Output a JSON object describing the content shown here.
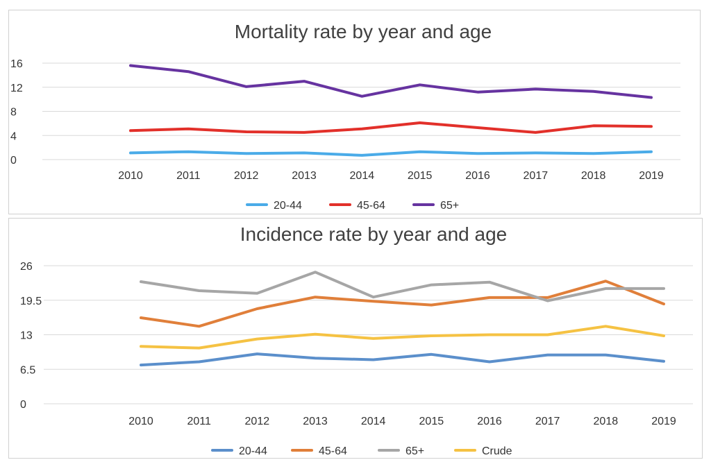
{
  "chart_data": [
    {
      "type": "line",
      "title": "Mortality rate by year and age",
      "xlabel": "",
      "ylabel": "",
      "categories": [
        "2010",
        "2011",
        "2012",
        "2013",
        "2014",
        "2015",
        "2016",
        "2017",
        "2018",
        "2019"
      ],
      "ylim": [
        0,
        16
      ],
      "yticks": [
        "0",
        "4",
        "8",
        "12",
        "16"
      ],
      "grid": true,
      "legend": "bottom",
      "series": [
        {
          "name": "20-44",
          "color": "#4aabe8",
          "values": [
            1.1,
            1.3,
            1.0,
            1.1,
            0.7,
            1.3,
            1.0,
            1.1,
            1.0,
            1.3
          ]
        },
        {
          "name": "45-64",
          "color": "#e2302a",
          "values": [
            4.8,
            5.1,
            4.6,
            4.5,
            5.1,
            6.1,
            5.3,
            4.5,
            5.6,
            5.5
          ]
        },
        {
          "name": "65+",
          "color": "#6633a0",
          "values": [
            15.6,
            14.6,
            12.1,
            13.0,
            10.5,
            12.4,
            11.2,
            11.7,
            11.3,
            10.3
          ]
        }
      ]
    },
    {
      "type": "line",
      "title": "Incidence rate by year and age",
      "xlabel": "",
      "ylabel": "",
      "categories": [
        "2010",
        "2011",
        "2012",
        "2013",
        "2014",
        "2015",
        "2016",
        "2017",
        "2018",
        "2019"
      ],
      "ylim": [
        0,
        26
      ],
      "yticks": [
        "0",
        "6.5",
        "13",
        "19.5",
        "26"
      ],
      "grid": true,
      "legend": "bottom",
      "series": [
        {
          "name": "20-44",
          "color": "#5b8fcb",
          "values": [
            7.3,
            7.9,
            9.4,
            8.6,
            8.3,
            9.3,
            7.9,
            9.2,
            9.2,
            8.0
          ]
        },
        {
          "name": "45-64",
          "color": "#e07f3a",
          "values": [
            16.2,
            14.6,
            17.9,
            20.1,
            19.3,
            18.6,
            20.0,
            20.0,
            23.1,
            18.8
          ]
        },
        {
          "name": "65+",
          "color": "#a6a6a6",
          "values": [
            23.0,
            21.3,
            20.8,
            24.8,
            20.1,
            22.4,
            22.9,
            19.4,
            21.7,
            21.7
          ]
        },
        {
          "name": "Crude",
          "color": "#f5c243",
          "values": [
            10.8,
            10.5,
            12.2,
            13.1,
            12.3,
            12.8,
            13.0,
            13.0,
            14.6,
            12.8
          ]
        }
      ]
    }
  ]
}
